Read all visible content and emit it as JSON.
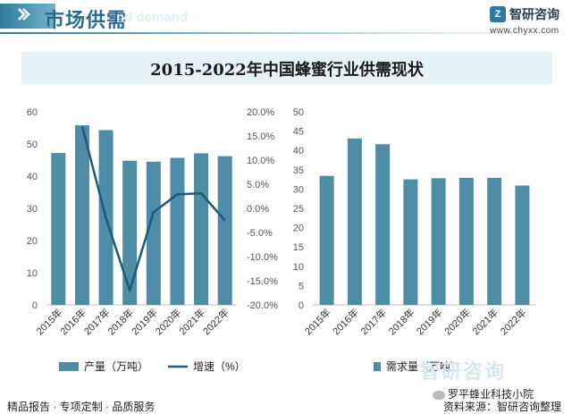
{
  "header": {
    "section_title": "市场供需",
    "watermark_text": "nd demand",
    "logo_text": "智研咨询",
    "logo_url": "www.chyxx.com",
    "accent": "#2b6c8e"
  },
  "chart_title": "2015-2022年中国蜂蜜行业供需现状",
  "chart_data": [
    {
      "type": "bar+line",
      "categories": [
        "2015年",
        "2016年",
        "2017年",
        "2018年",
        "2019年",
        "2020年",
        "2021年",
        "2022年"
      ],
      "series": [
        {
          "name": "产量（万吨）",
          "type": "bar",
          "axis": "left",
          "color": "#4f8ca6",
          "values": [
            47.2,
            55.8,
            54.3,
            44.8,
            44.5,
            45.7,
            47.1,
            46.2
          ]
        },
        {
          "name": "增速（%）",
          "type": "line",
          "axis": "right",
          "color": "#1f5a78",
          "values": [
            null,
            17.0,
            -2.0,
            -17.0,
            -0.8,
            2.9,
            3.1,
            -2.5
          ]
        }
      ],
      "left_axis": {
        "ylim": [
          0,
          60
        ],
        "ticks": [
          0,
          10,
          20,
          30,
          40,
          50,
          60
        ]
      },
      "right_axis": {
        "ylim": [
          -20,
          20
        ],
        "ticks": [
          "20.0%",
          "15.0%",
          "10.0%",
          "5.0%",
          "0.0%",
          "-5.0%",
          "-10.0%",
          "-15.0%",
          "-20.0%"
        ]
      },
      "legend_position": "bottom"
    },
    {
      "type": "bar",
      "categories": [
        "2015年",
        "2016年",
        "2017年",
        "2018年",
        "2019年",
        "2020年",
        "2021年",
        "2022年"
      ],
      "series": [
        {
          "name": "需求量（万吨）",
          "color": "#4f8ca6",
          "values": [
            33.4,
            43.1,
            41.6,
            32.5,
            32.8,
            32.9,
            32.9,
            30.9
          ]
        }
      ],
      "ylim": [
        0,
        50
      ],
      "ticks": [
        0,
        5,
        10,
        15,
        20,
        25,
        30,
        35,
        40,
        45,
        50
      ],
      "legend_position": "bottom"
    }
  ],
  "footer": {
    "left_text": "精品报告 · 专项定制 · 品质服务",
    "watermark": "智研咨询",
    "account": "罗平蜂业科技小院",
    "source": "资料来源：智研咨询整理"
  }
}
